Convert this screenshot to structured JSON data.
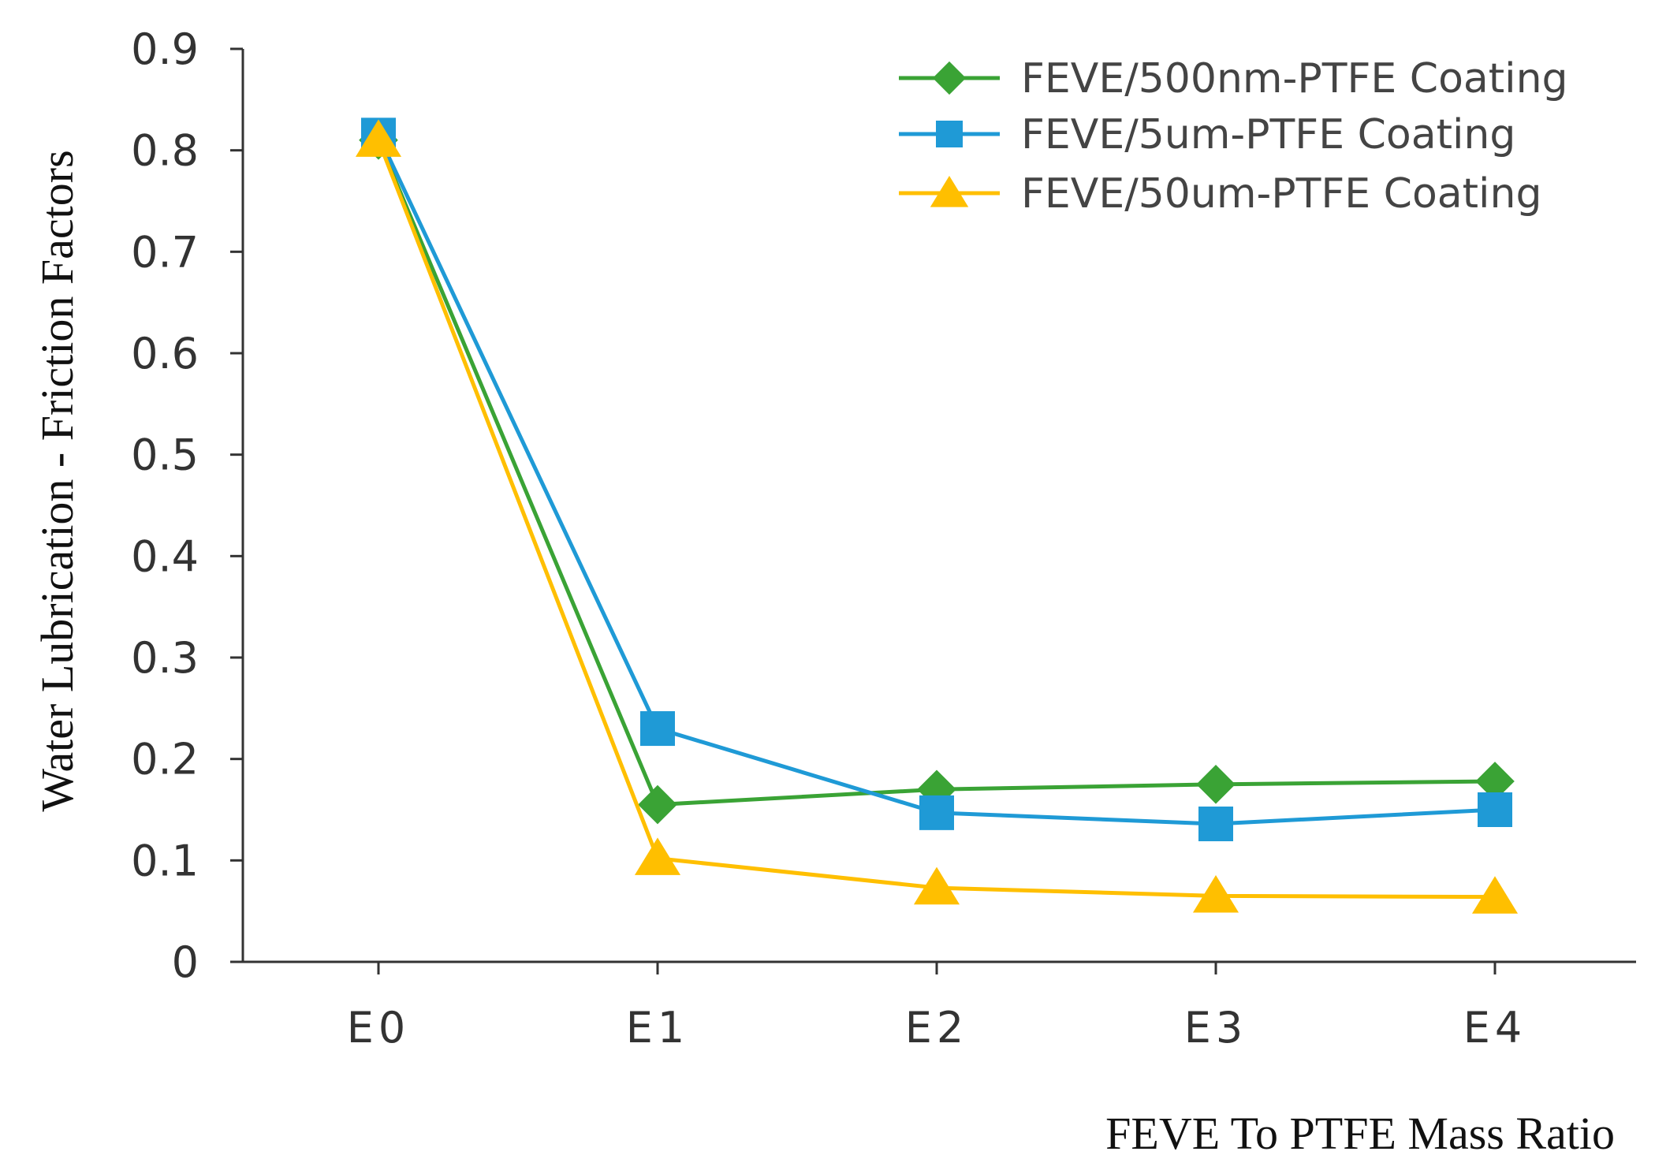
{
  "chart_data": {
    "type": "line",
    "title": "",
    "xlabel": "FEVE To PTFE Mass Ratio",
    "ylabel": "Water Lubrication - Friction Factors",
    "categories": [
      "E0",
      "E1",
      "E2",
      "E3",
      "E4"
    ],
    "ylim": [
      0,
      0.9
    ],
    "yticks": [
      "0",
      "0.1",
      "0.2",
      "0.3",
      "0.4",
      "0.5",
      "0.6",
      "0.7",
      "0.8",
      "0.9"
    ],
    "legend_position": "top-right",
    "grid": false,
    "series": [
      {
        "name": "FEVE/500nm-PTFE Coating",
        "color": "#3aa335",
        "marker": "diamond",
        "values": [
          0.81,
          0.155,
          0.17,
          0.175,
          0.178
        ]
      },
      {
        "name": "FEVE/5um-PTFE Coating",
        "color": "#1f9ad6",
        "marker": "square",
        "values": [
          0.815,
          0.23,
          0.147,
          0.136,
          0.15
        ]
      },
      {
        "name": "FEVE/50um-PTFE Coating",
        "color": "#ffbf00",
        "marker": "triangle",
        "values": [
          0.81,
          0.102,
          0.073,
          0.065,
          0.064
        ]
      }
    ]
  }
}
